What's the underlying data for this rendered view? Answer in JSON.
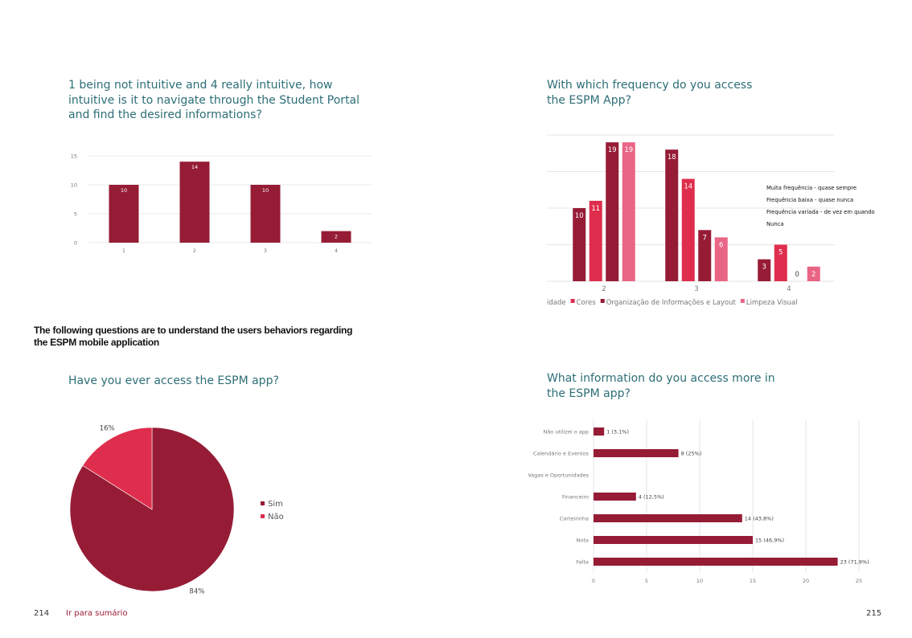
{
  "questions": {
    "q1": "1 being not intuitive and 4 really intuitive, how intuitive is it to navigate through the Student Portal and find the desired informations?",
    "q2": "With which frequency do you access the ESPM App?",
    "q3": "Have you ever access the ESPM app?",
    "q4": "What information do you access more in the ESPM app?"
  },
  "intro": "The following questions are to understand the users behaviors regarding the ESPM mobile application",
  "footer": {
    "page_left": "214",
    "link": "Ir para sumário",
    "page_right": "215"
  },
  "colors": {
    "dark": "#961c36",
    "mid": "#df2e4d",
    "light": "#e96585",
    "grid": "#e6e6e6"
  },
  "chart_data": [
    {
      "type": "bar",
      "categories": [
        "1",
        "2",
        "3",
        "4"
      ],
      "values": [
        10,
        14,
        10,
        2
      ],
      "yticks": [
        0,
        5,
        10,
        15
      ],
      "ylim": [
        0,
        15
      ],
      "grid": true
    },
    {
      "type": "bar",
      "categories": [
        "2",
        "3",
        "4"
      ],
      "series": [
        {
          "name": "idade",
          "values": [
            10,
            18,
            3
          ]
        },
        {
          "name": "Cores",
          "values": [
            11,
            14,
            5
          ]
        },
        {
          "name": "Organização de Informações e Layout",
          "values": [
            19,
            7,
            0
          ]
        },
        {
          "name": "Limpeza Visual",
          "values": [
            19,
            6,
            2
          ]
        }
      ],
      "ylim": [
        0,
        20
      ],
      "grid": true,
      "legend": "bottom",
      "legend_entries": [
        "idade",
        "Cores",
        "Organização de Informações e Layout",
        "Limpeza Visual"
      ],
      "side_legend": [
        "Muita frequência - quase sempre",
        "Frequência baixa - quase nunca",
        "Frequência variada - de vez em quando",
        "Nunca"
      ]
    },
    {
      "type": "pie",
      "slices": [
        {
          "name": "Sim",
          "value": 84,
          "label": "84%"
        },
        {
          "name": "Não",
          "value": 16,
          "label": "16%"
        }
      ],
      "legend": "right"
    },
    {
      "type": "bar",
      "orientation": "horizontal",
      "categories": [
        "Não utilizei o app",
        "Calendário e Eventos",
        "Vagas e Oportunidades",
        "Financeiro",
        "Carteirinha",
        "Nota",
        "Falta"
      ],
      "values": [
        1,
        8,
        0,
        4,
        14,
        15,
        23
      ],
      "labels": [
        "1 (3,1%)",
        "8 (25%)",
        "",
        "4 (12,5%)",
        "14 (43,8%)",
        "15 (46,9%)",
        "23 (71,9%)"
      ],
      "xticks": [
        0,
        5,
        10,
        15,
        20,
        25
      ],
      "xlim": [
        0,
        25
      ],
      "grid": true
    }
  ]
}
